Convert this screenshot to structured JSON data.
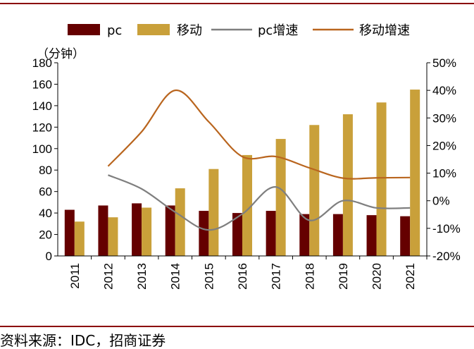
{
  "chart_data": {
    "type": "bar",
    "title": "",
    "categories": [
      "2011",
      "2012",
      "2013",
      "2014",
      "2015",
      "2016",
      "2017",
      "2018",
      "2019",
      "2020",
      "2021"
    ],
    "series": [
      {
        "name": "pc",
        "kind": "bar",
        "axis": "left",
        "color": "#650000",
        "values": [
          43,
          47,
          49,
          47,
          42,
          40,
          42,
          39,
          39,
          38,
          37
        ]
      },
      {
        "name": "移动",
        "kind": "bar",
        "axis": "left",
        "color": "#C9A03A",
        "values": [
          32,
          36,
          45,
          63,
          81,
          94,
          109,
          122,
          132,
          143,
          155
        ]
      },
      {
        "name": "pc增速",
        "kind": "line",
        "axis": "right",
        "color": "#7f7f7f",
        "values": [
          null,
          9.3,
          4.3,
          -4.1,
          -10.6,
          -4.8,
          5.0,
          -7.1,
          0.0,
          -2.6,
          -2.6
        ]
      },
      {
        "name": "移动增速",
        "kind": "line",
        "axis": "right",
        "color": "#B9651E",
        "values": [
          null,
          12.5,
          25.0,
          40.0,
          28.6,
          16.0,
          16.0,
          11.9,
          8.2,
          8.3,
          8.4
        ]
      }
    ],
    "ylabel": "（分钟）",
    "ylim": [
      0,
      180
    ],
    "yticks": [
      0,
      20,
      40,
      60,
      80,
      100,
      120,
      140,
      160,
      180
    ],
    "y2lim": [
      -20,
      50
    ],
    "y2ticks": [
      "-20%",
      "-10%",
      "0%",
      "10%",
      "20%",
      "30%",
      "40%",
      "50%"
    ],
    "legend": [
      "pc",
      "移动",
      "pc增速",
      "移动增速"
    ],
    "legend_position": "top"
  },
  "source": "资料来源：IDC，招商证券"
}
